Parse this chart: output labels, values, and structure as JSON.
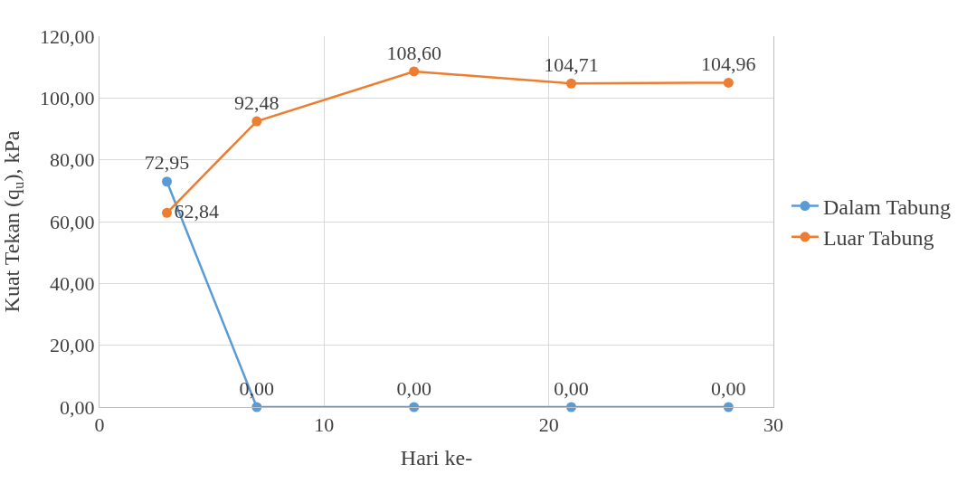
{
  "chart_data": {
    "type": "line",
    "xlabel": "Hari ke-",
    "ylabel": "Kuat Tekan (q$_{u}$), kPa",
    "x": [
      3,
      7,
      14,
      21,
      28
    ],
    "series": [
      {
        "name": "Dalam Tabung",
        "color": "#5b9bd5",
        "values": [
          72.95,
          0,
          0,
          0,
          0
        ],
        "value_labels": [
          "72,95",
          "0,00",
          "0,00",
          "0,00",
          "0,00"
        ]
      },
      {
        "name": "Luar Tabung",
        "color": "#ed7d31",
        "values": [
          62.84,
          92.48,
          108.6,
          104.71,
          104.96
        ],
        "value_labels": [
          "62,84",
          "92,48",
          "108,60",
          "104,71",
          "104,96"
        ]
      }
    ],
    "xlim": [
      0,
      30
    ],
    "xticks": [
      0,
      10,
      20,
      30
    ],
    "ylim": [
      0,
      120
    ],
    "yticks": [
      {
        "value": 0,
        "label": "0,00"
      },
      {
        "value": 20,
        "label": "20,00"
      },
      {
        "value": 40,
        "label": "40,00"
      },
      {
        "value": 60,
        "label": "60,00"
      },
      {
        "value": 80,
        "label": "80,00"
      },
      {
        "value": 100,
        "label": "100,00"
      },
      {
        "value": 120,
        "label": "120,00"
      }
    ],
    "grid": true,
    "legend": "right",
    "marker": "circle",
    "line_style": "solid"
  }
}
